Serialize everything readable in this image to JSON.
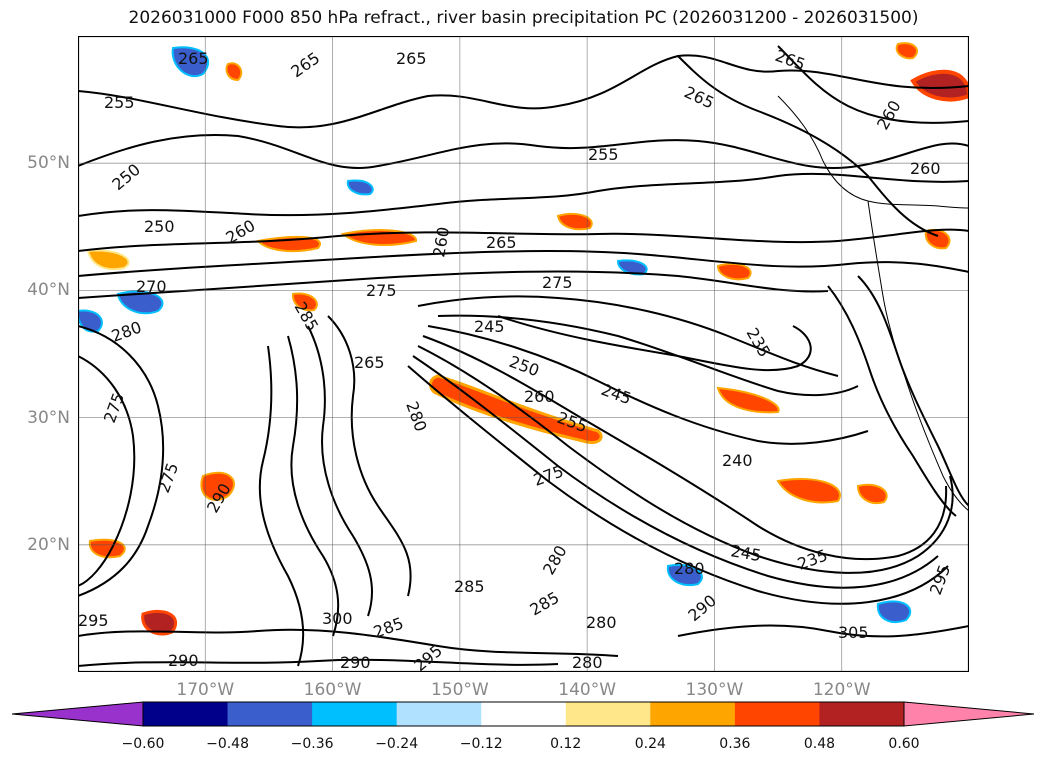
{
  "title": "2026031000 F000 850 hPa refract., river basin precipitation PC (2026031200 - 2026031500)",
  "lat_labels": [
    {
      "text": "50°N",
      "lat": 50
    },
    {
      "text": "40°N",
      "lat": 40
    },
    {
      "text": "30°N",
      "lat": 30
    },
    {
      "text": "20°N",
      "lat": 20
    }
  ],
  "lon_labels": [
    {
      "text": "170°W",
      "lon": -170
    },
    {
      "text": "160°W",
      "lon": -160
    },
    {
      "text": "150°W",
      "lon": -150
    },
    {
      "text": "140°W",
      "lon": -140
    },
    {
      "text": "130°W",
      "lon": -130
    },
    {
      "text": "120°W",
      "lon": -120
    }
  ],
  "map_extent": {
    "lon_min": -180,
    "lon_max": -110,
    "lat_min": 10,
    "lat_max": 60
  },
  "contour_labels": [
    "265",
    "265",
    "265",
    "265",
    "255",
    "265",
    "260",
    "250",
    "255",
    "260",
    "250",
    "260",
    "265",
    "275",
    "260",
    "275",
    "270",
    "280",
    "245",
    "235",
    "285",
    "265",
    "250",
    "260",
    "245",
    "255",
    "275",
    "280",
    "240",
    "290",
    "275",
    "245",
    "275",
    "235",
    "280",
    "285",
    "280",
    "295",
    "290",
    "280",
    "300",
    "285",
    "285",
    "305",
    "290",
    "295",
    "290",
    "280",
    "295"
  ],
  "colorbar": {
    "ticks": [
      "−0.60",
      "−0.48",
      "−0.36",
      "−0.24",
      "−0.12",
      "0.12",
      "0.24",
      "0.36",
      "0.48",
      "0.60"
    ],
    "colors": [
      "#9932cc",
      "#00008b",
      "#3a5fcd",
      "#00bfff",
      "#b0e2ff",
      "#ffffff",
      "#ffe78a",
      "#ffa500",
      "#ff4500",
      "#b22222",
      "#ff82ab"
    ]
  }
}
